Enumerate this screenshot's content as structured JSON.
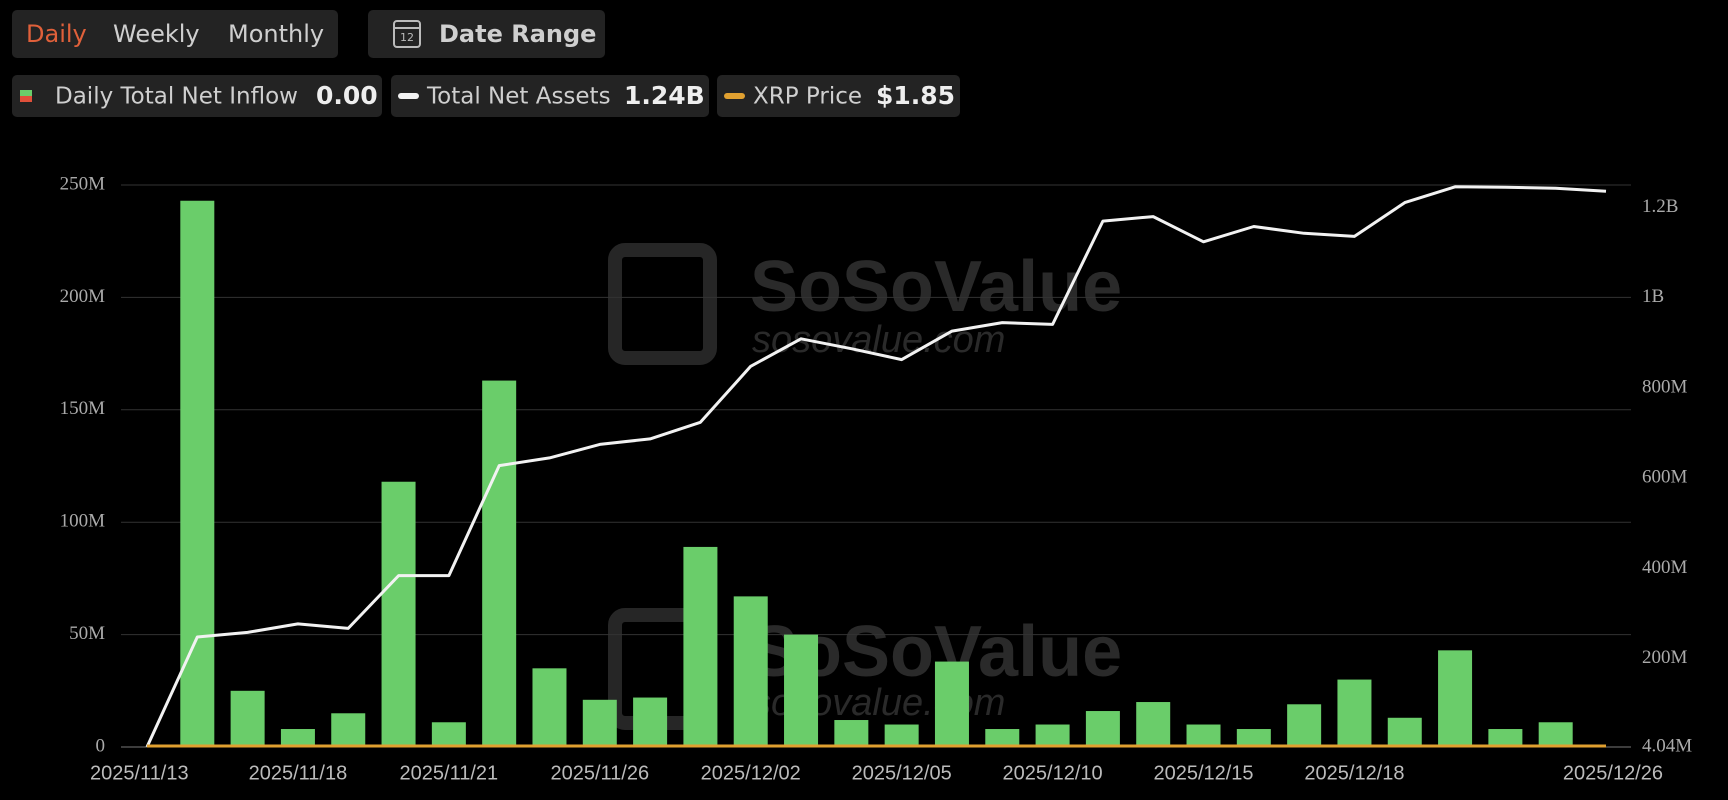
{
  "header": {
    "tabs": [
      "Daily",
      "Weekly",
      "Monthly"
    ],
    "date_icon_day": "12",
    "date_range": "Date Range"
  },
  "legend": [
    {
      "label": "Daily Total Net Inflow",
      "value": "0.00"
    },
    {
      "label": "Total Net Assets",
      "value": "1.24B"
    },
    {
      "label": "XRP Price",
      "value": "$1.85"
    }
  ],
  "watermark": {
    "brand": "SoSoValue",
    "url": "sosovalue.com"
  },
  "chart_data": {
    "type": "bar-line",
    "categories": [
      "2025/11/13",
      null,
      null,
      "2025/11/18",
      null,
      null,
      "2025/11/21",
      null,
      null,
      "2025/11/26",
      null,
      null,
      "2025/12/02",
      null,
      null,
      "2025/12/05",
      null,
      null,
      "2025/12/10",
      null,
      null,
      "2025/12/15",
      null,
      null,
      "2025/12/18",
      null,
      null,
      null,
      null,
      "2025/12/26"
    ],
    "series": [
      {
        "name": "Daily Total Net Inflow",
        "type": "bar",
        "color": "#6acd6a",
        "values": [
          null,
          243000000,
          25000000,
          8000000,
          15000000,
          118000000,
          11000000,
          163000000,
          35000000,
          21000000,
          22000000,
          89000000,
          67000000,
          50000000,
          12000000,
          10000000,
          38000000,
          8000000,
          10000000,
          16000000,
          20000000,
          10000000,
          8000000,
          19000000,
          30000000,
          13000000,
          43000000,
          8000000,
          11000000,
          null
        ]
      },
      {
        "name": "Total Net Assets",
        "type": "line",
        "axis": "y2",
        "color": "#f2f2f2",
        "values": [
          4040000,
          248000000,
          258000000,
          277000000,
          267000000,
          384000000,
          384000000,
          628000000,
          645000000,
          675000000,
          687000000,
          724000000,
          848000000,
          909000000,
          887000000,
          863000000,
          926000000,
          945000000,
          941000000,
          1170000000,
          1180000000,
          1124000000,
          1158000000,
          1143000000,
          1136000000,
          1211000000,
          1246000000,
          1245000000,
          1243000000,
          1236000000
        ]
      }
    ],
    "ylim": [
      0,
      250000000
    ],
    "yticks": [
      0,
      {
        "value": 50000000,
        "label": "50M"
      },
      {
        "value": 100000000,
        "label": "100M"
      },
      {
        "value": 150000000,
        "label": "150M"
      },
      {
        "value": 200000000,
        "label": "200M"
      },
      {
        "value": 250000000,
        "label": "250M"
      }
    ],
    "y2lim": [
      4040000,
      1250000000
    ],
    "y2ticks": [
      {
        "value": 4040000,
        "label": "4.04M"
      },
      {
        "value": 200000000,
        "label": "200M"
      },
      {
        "value": 400000000,
        "label": "400M"
      },
      {
        "value": 600000000,
        "label": "600M"
      },
      {
        "value": 800000000,
        "label": "800M"
      },
      {
        "value": 1000000000,
        "label": "1B"
      },
      {
        "value": 1200000000,
        "label": "1.2B"
      }
    ],
    "grid": true
  }
}
